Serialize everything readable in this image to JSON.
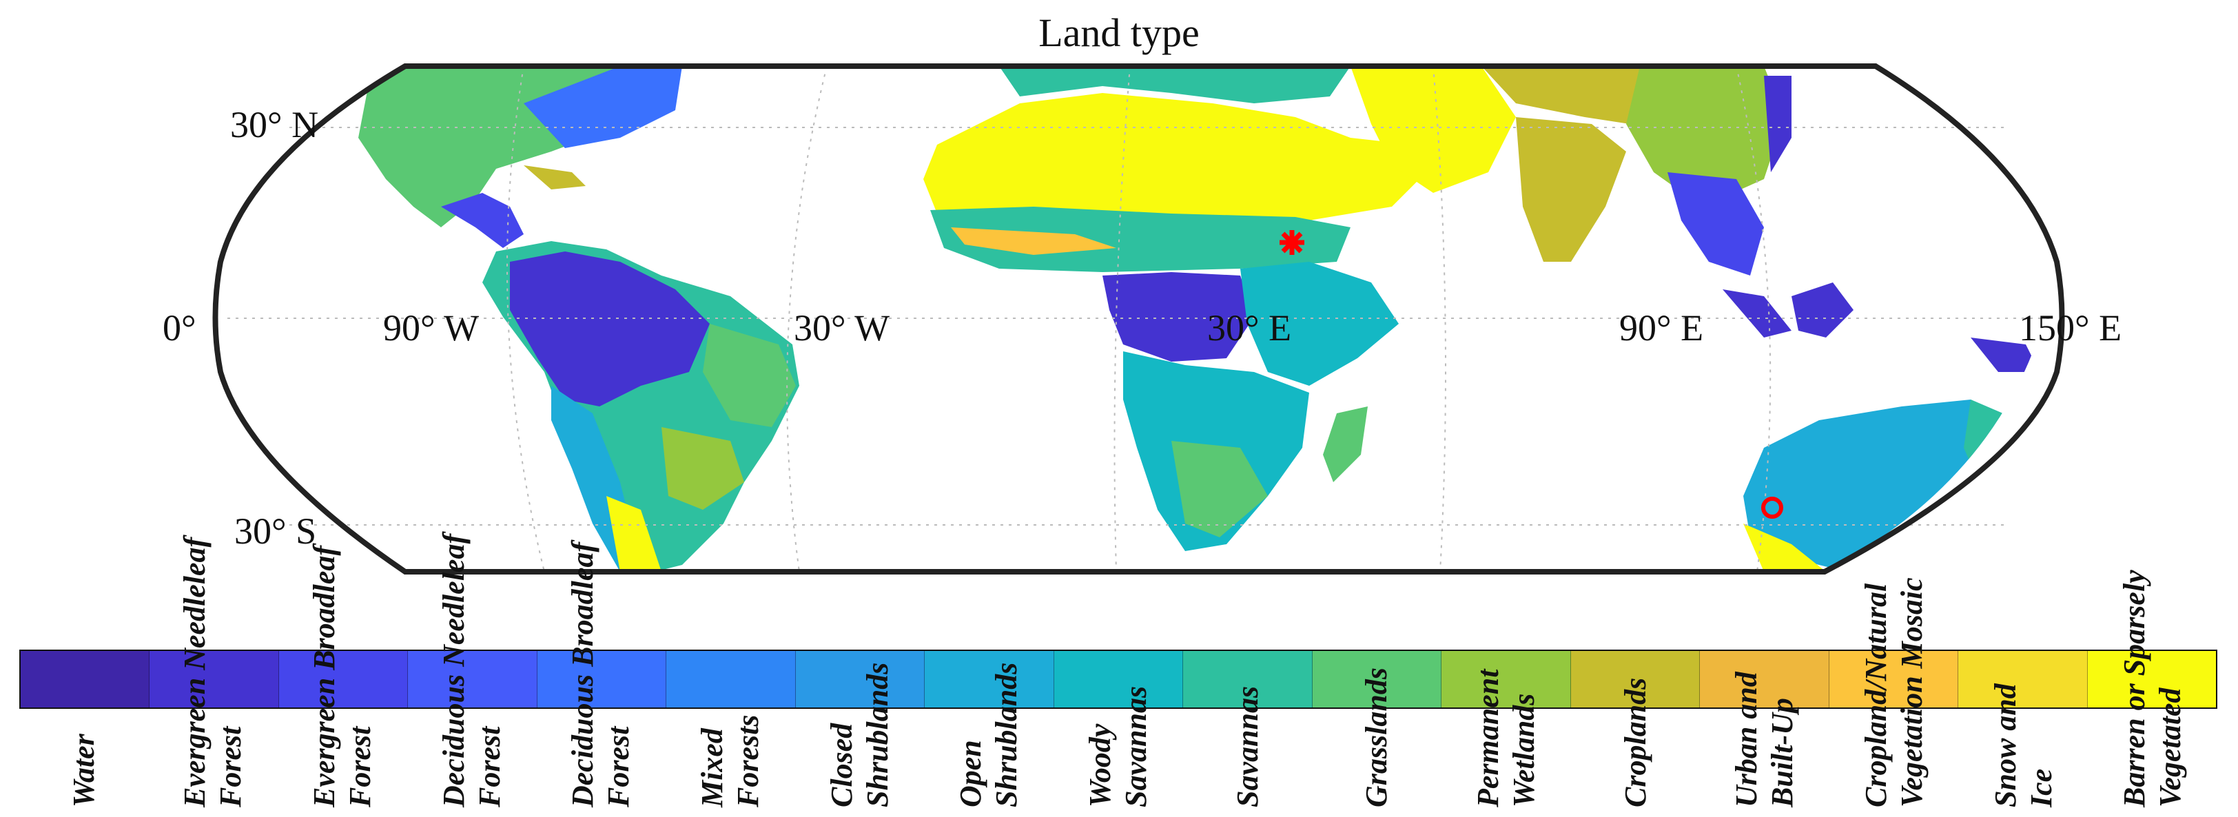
{
  "title": "Land type",
  "map": {
    "lat_labels": [
      "30° N",
      "0°",
      "30° S"
    ],
    "lon_labels": [
      "90° W",
      "30° W",
      "30° E",
      "90° E",
      "150° E"
    ],
    "markers": [
      {
        "name": "star-marker",
        "symbol": "*",
        "color": "#ff0000"
      },
      {
        "name": "circle-marker",
        "symbol": "o",
        "color": "#ff0000"
      }
    ]
  },
  "colorbar": {
    "classes": [
      {
        "label": [
          "Water"
        ],
        "color": "#3e26a8"
      },
      {
        "label": [
          "Evergreen Needleleaf",
          "Forest"
        ],
        "color": "#4433d0"
      },
      {
        "label": [
          "Evergreen Broadleaf",
          "Forest"
        ],
        "color": "#4546ec"
      },
      {
        "label": [
          "Deciduous Needleleaf",
          "Forest"
        ],
        "color": "#455bfa"
      },
      {
        "label": [
          "Deciduous Broadleaf",
          "Forest"
        ],
        "color": "#3a71fe"
      },
      {
        "label": [
          "Mixed",
          "Forests"
        ],
        "color": "#2f86f6"
      },
      {
        "label": [
          "Closed",
          "Shrublands"
        ],
        "color": "#2a99e6"
      },
      {
        "label": [
          "Open",
          "Shrublands"
        ],
        "color": "#1eacd8"
      },
      {
        "label": [
          "Woody",
          "Savannas"
        ],
        "color": "#14b8c4"
      },
      {
        "label": [
          "Savannas"
        ],
        "color": "#2ec09f"
      },
      {
        "label": [
          "Grasslands"
        ],
        "color": "#5ac873"
      },
      {
        "label": [
          "Permanent",
          "Wetlands"
        ],
        "color": "#94c83e"
      },
      {
        "label": [
          "Croplands"
        ],
        "color": "#c6bd2e"
      },
      {
        "label": [
          "Urban and",
          "Built-Up"
        ],
        "color": "#eeb73d"
      },
      {
        "label": [
          "Cropland/Natural",
          "Vegetation Mosaic"
        ],
        "color": "#fcc43c"
      },
      {
        "label": [
          "Snow and",
          "Ice"
        ],
        "color": "#f4dd2a"
      },
      {
        "label": [
          "Barren or Sparsely",
          "Vegetated"
        ],
        "color": "#f9fb0e"
      }
    ]
  }
}
